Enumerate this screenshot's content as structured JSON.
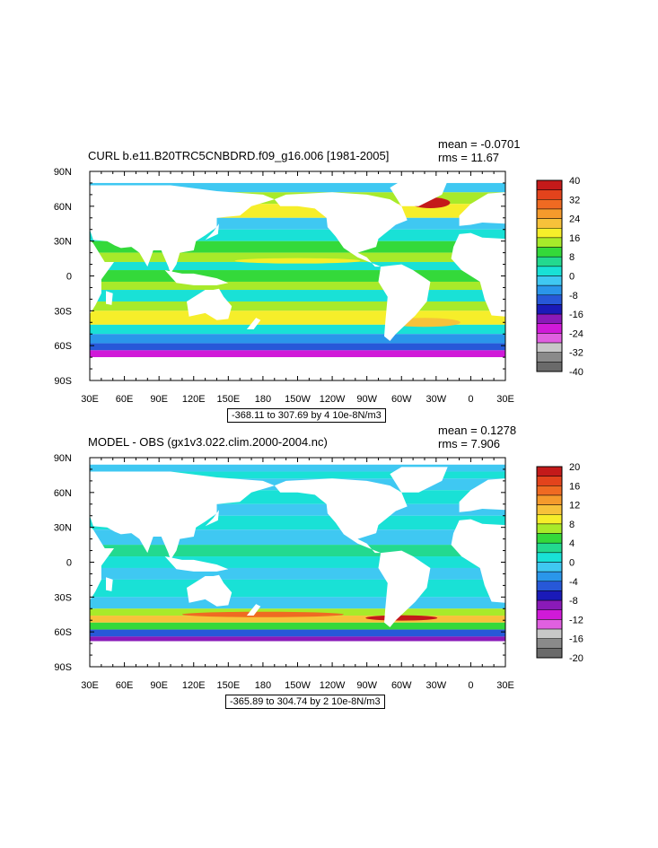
{
  "chart_data": [
    {
      "type": "heatmap",
      "title": "CURL b.e11.B20TRC5CNBDRD.f09_g16.006 [1981-2005]",
      "mean_label": "mean = -0.0701",
      "rms_label": "rms = 11.67",
      "range_label": "-368.11 to 307.69 by 4 10e-8N/m3",
      "x_ticks": [
        "30E",
        "60E",
        "90E",
        "120E",
        "150E",
        "180",
        "150W",
        "120W",
        "90W",
        "60W",
        "30W",
        "0",
        "30E"
      ],
      "y_ticks": [
        "90N",
        "60N",
        "30N",
        "0",
        "30S",
        "60S",
        "90S"
      ],
      "colorbar_levels": [
        40,
        32,
        24,
        16,
        8,
        0,
        -8,
        -16,
        -24,
        -32,
        -40
      ],
      "colorbar_labels": [
        "40",
        "32",
        "24",
        "16",
        "8",
        "0",
        "-8",
        "-16",
        "-24",
        "-32",
        "-40"
      ]
    },
    {
      "type": "heatmap",
      "title": "MODEL - OBS (gx1v3.022.clim.2000-2004.nc)",
      "mean_label": "mean = 0.1278",
      "rms_label": "rms = 7.906",
      "range_label": "-365.89 to 304.74 by 2 10e-8N/m3",
      "x_ticks": [
        "30E",
        "60E",
        "90E",
        "120E",
        "150E",
        "180",
        "150W",
        "120W",
        "90W",
        "60W",
        "30W",
        "0",
        "30E"
      ],
      "y_ticks": [
        "90N",
        "60N",
        "30N",
        "0",
        "30S",
        "60S",
        "90S"
      ],
      "colorbar_levels": [
        20,
        16,
        12,
        8,
        4,
        0,
        -4,
        -8,
        -12,
        -16,
        -20
      ],
      "colorbar_labels": [
        "20",
        "16",
        "12",
        "8",
        "4",
        "0",
        "-4",
        "-8",
        "-12",
        "-16",
        "-20"
      ]
    }
  ],
  "colors": {
    "colorbar": [
      "#c41a1a",
      "#e3431c",
      "#ef6a22",
      "#f59a2c",
      "#f7c23a",
      "#f6ee2a",
      "#a8ea2a",
      "#34d93a",
      "#23d98f",
      "#19e1d6",
      "#3fc8f2",
      "#2a96ea",
      "#2758d8",
      "#1a1ab8",
      "#8a1ab8",
      "#d01ad8",
      "#e060e0",
      "#c8c8c8",
      "#8a8a8a",
      "#6a6a6a"
    ],
    "ocean_base": "#3fd6d6",
    "land": "#ffffff"
  }
}
